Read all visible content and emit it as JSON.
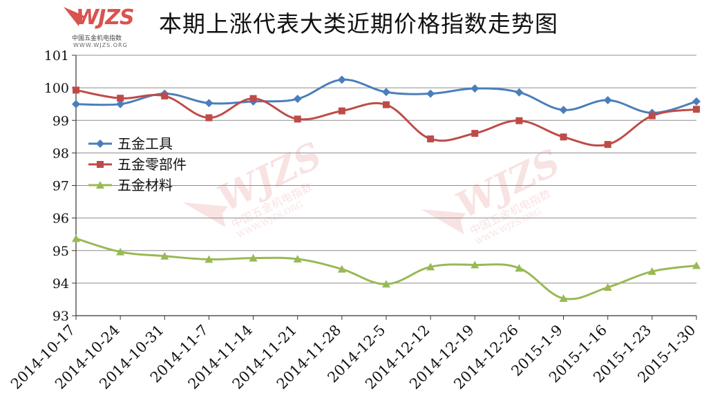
{
  "title": "本期上涨代表大类近期价格指数走势图",
  "logo": {
    "word": "WJZS",
    "cn": "中国五金机电指数",
    "url": "WWW.WJZS.ORG"
  },
  "watermark": {
    "word": "WJZS",
    "cn": "中国五金机电指数",
    "url": "WWW.WJZS.ORG"
  },
  "chart_data": {
    "type": "line",
    "title": "本期上涨代表大类近期价格指数走势图",
    "categories": [
      "2014-10-17",
      "2014-10-24",
      "2014-10-31",
      "2014-11-7",
      "2014-11-14",
      "2014-11-21",
      "2014-11-28",
      "2014-12-5",
      "2014-12-12",
      "2014-12-19",
      "2014-12-26",
      "2015-1-9",
      "2015-1-16",
      "2015-1-23",
      "2015-1-30"
    ],
    "ylim": [
      93,
      101
    ],
    "yticks": [
      93,
      94,
      95,
      96,
      97,
      98,
      99,
      100,
      101
    ],
    "grid": true,
    "legend_position": "left",
    "series": [
      {
        "name": "五金工具",
        "color": "#4a7ebb",
        "marker": "diamond",
        "values": [
          99.5,
          99.5,
          99.82,
          99.53,
          99.58,
          99.66,
          100.25,
          99.87,
          99.82,
          99.98,
          99.86,
          99.32,
          99.62,
          99.23,
          99.58
        ]
      },
      {
        "name": "五金零部件",
        "color": "#be4b48",
        "marker": "square",
        "values": [
          99.93,
          99.68,
          99.75,
          99.08,
          99.67,
          99.04,
          99.29,
          99.48,
          98.43,
          98.6,
          98.99,
          98.49,
          98.26,
          99.14,
          99.34
        ]
      },
      {
        "name": "五金材料",
        "color": "#98b954",
        "marker": "triangle",
        "values": [
          95.37,
          94.96,
          94.83,
          94.73,
          94.77,
          94.74,
          94.43,
          93.97,
          94.5,
          94.56,
          94.46,
          93.53,
          93.87,
          94.36,
          94.54
        ]
      }
    ]
  }
}
